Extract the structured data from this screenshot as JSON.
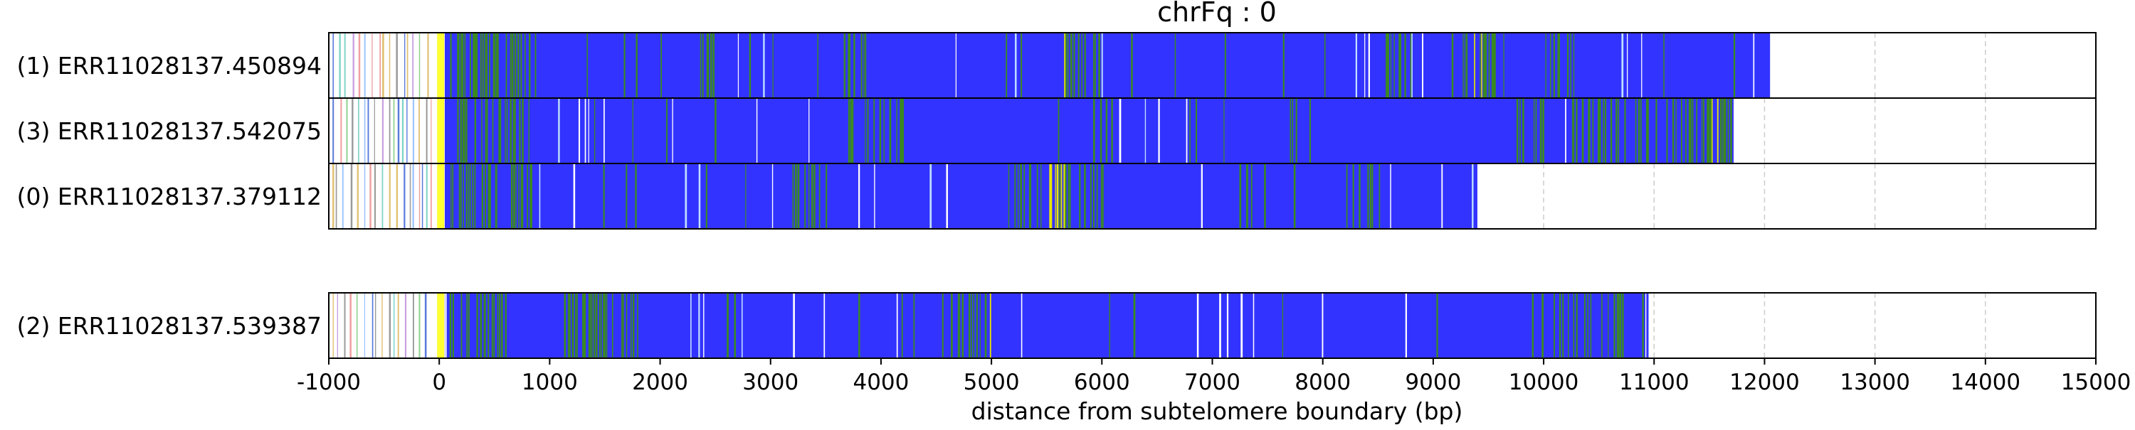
{
  "chart_data": {
    "type": "heatmap",
    "title": "chrFq : 0",
    "xlabel": "distance from subtelomere boundary (bp)",
    "ylabel": "",
    "xlim": [
      -1000,
      15000
    ],
    "xticks": [
      -1000,
      0,
      1000,
      2000,
      3000,
      4000,
      5000,
      6000,
      7000,
      8000,
      9000,
      10000,
      11000,
      12000,
      13000,
      14000,
      15000
    ],
    "x_grid": true,
    "grid_style": "dashed light gray vertical lines at each x tick",
    "colors": {
      "canonical_repeat": "#3333ff",
      "variant_green": "#3a8a1e",
      "variant_yellow": "#e6e600",
      "subtelomere_boundary": "#ffff33",
      "background": "#ffffff"
    },
    "reads": [
      {
        "label": "(1) ERR11028137.450894",
        "group": 1,
        "read_end_bp": 12050,
        "dense_repeat_start_bp": 50,
        "green_clusters_bp": [
          [
            -1000,
            50
          ],
          [
            100,
            900
          ],
          [
            1600,
            1800
          ],
          [
            2300,
            2500
          ],
          [
            3600,
            3900
          ],
          [
            5600,
            6000
          ],
          [
            8500,
            8800
          ],
          [
            9200,
            9600
          ],
          [
            9900,
            10300
          ]
        ],
        "yellow_clusters_bp": [
          [
            5650,
            5700
          ],
          [
            9350,
            9450
          ]
        ]
      },
      {
        "label": "(3) ERR11028137.542075",
        "group": 1,
        "read_end_bp": 11720,
        "dense_repeat_start_bp": 50,
        "green_clusters_bp": [
          [
            -1000,
            50
          ],
          [
            100,
            800
          ],
          [
            3700,
            4200
          ],
          [
            5900,
            6100
          ],
          [
            7700,
            7900
          ],
          [
            9700,
            10000
          ],
          [
            10200,
            11700
          ]
        ],
        "yellow_clusters_bp": [
          [
            11500,
            11600
          ]
        ]
      },
      {
        "label": "(0) ERR11028137.379112",
        "group": 1,
        "read_end_bp": 9400,
        "dense_repeat_start_bp": 50,
        "green_clusters_bp": [
          [
            -1000,
            50
          ],
          [
            100,
            900
          ],
          [
            3200,
            3500
          ],
          [
            5100,
            6000
          ],
          [
            7200,
            7400
          ],
          [
            8200,
            8600
          ]
        ],
        "yellow_clusters_bp": [
          [
            5300,
            5800
          ]
        ]
      },
      {
        "label": "(2) ERR11028137.539387",
        "group": 2,
        "read_end_bp": 10950,
        "dense_repeat_start_bp": 50,
        "green_clusters_bp": [
          [
            -1000,
            50
          ],
          [
            100,
            600
          ],
          [
            1100,
            1800
          ],
          [
            4600,
            5000
          ],
          [
            10000,
            10800
          ]
        ],
        "yellow_clusters_bp": [
          [
            4990,
            5010
          ]
        ]
      }
    ]
  }
}
